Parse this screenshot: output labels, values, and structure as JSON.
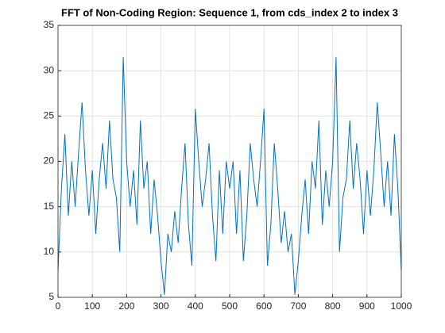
{
  "chart_data": {
    "type": "line",
    "title": "FFT of Non-Coding Region: Sequence 1, from cds_index 2 to index 3",
    "x": [
      0,
      10,
      20,
      30,
      40,
      50,
      60,
      70,
      80,
      90,
      100,
      110,
      120,
      130,
      140,
      150,
      160,
      170,
      180,
      190,
      200,
      210,
      220,
      230,
      240,
      250,
      260,
      270,
      280,
      290,
      300,
      310,
      320,
      330,
      340,
      350,
      360,
      370,
      380,
      390,
      400,
      410,
      420,
      430,
      440,
      450,
      460,
      470,
      480,
      490,
      500,
      510,
      520,
      530,
      540,
      550,
      560,
      570,
      580,
      590,
      600,
      610,
      620,
      630,
      640,
      650,
      660,
      670,
      680,
      690,
      700,
      710,
      720,
      730,
      740,
      750,
      760,
      770,
      780,
      790,
      800,
      810,
      820,
      830,
      840,
      850,
      860,
      870,
      880,
      890,
      900,
      910,
      920,
      930,
      940,
      950,
      960,
      970,
      980,
      990,
      1000
    ],
    "series": [
      {
        "name": "FFT",
        "color": "#0072bd",
        "values": [
          8,
          17,
          23,
          14,
          20,
          15,
          21,
          26.5,
          19,
          14,
          19,
          12,
          18,
          22,
          17,
          24.5,
          18,
          16,
          10,
          31.5,
          20,
          15,
          19,
          13,
          24.5,
          17,
          20,
          12,
          18,
          14,
          9,
          5.3,
          12,
          10,
          14.5,
          11,
          17,
          22,
          13,
          8.5,
          25.8,
          20,
          15,
          18,
          22,
          14,
          9,
          19,
          12,
          20,
          17,
          20,
          12,
          19,
          9,
          14,
          22,
          18,
          15,
          20,
          25.8,
          8.5,
          13,
          22,
          17,
          11,
          14.5,
          10,
          12,
          5.3,
          9,
          14,
          18,
          12,
          20,
          17,
          24.5,
          13,
          19,
          15,
          20,
          31.5,
          10,
          16,
          18,
          24.5,
          17,
          22,
          18,
          12,
          19,
          14,
          19,
          26.5,
          21,
          15,
          20,
          14,
          23,
          17,
          8
        ]
      }
    ],
    "xlim": [
      0,
      1000
    ],
    "xticks": [
      0,
      100,
      200,
      300,
      400,
      500,
      600,
      700,
      800,
      900,
      1000
    ],
    "ylim": [
      5,
      35
    ],
    "yticks": [
      5,
      10,
      15,
      20,
      25,
      30,
      35
    ],
    "grid": true
  }
}
